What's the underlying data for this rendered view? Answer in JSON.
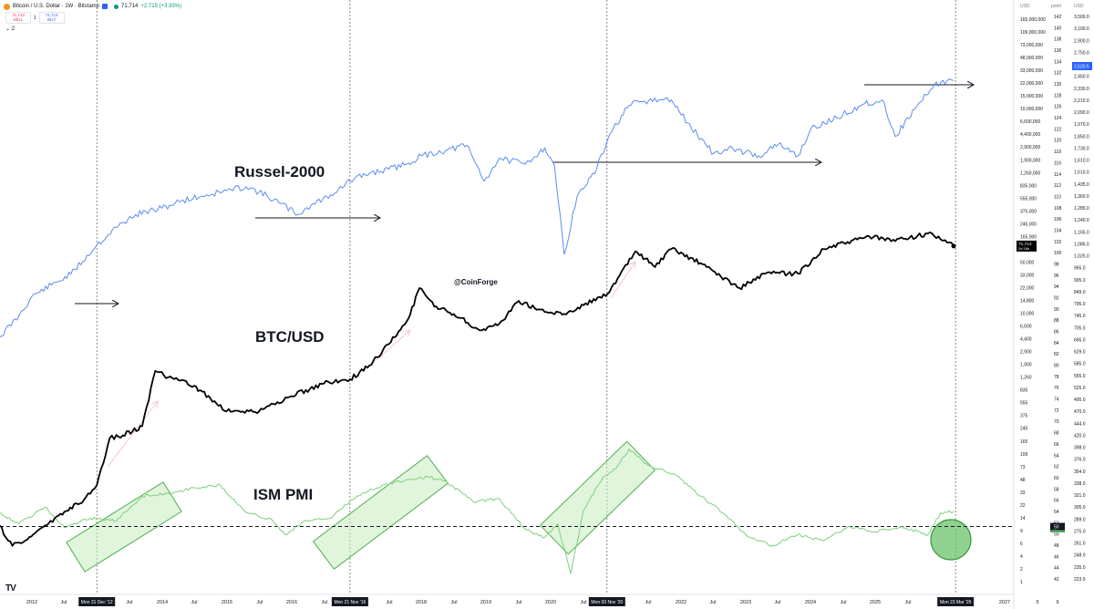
{
  "header": {
    "title": "Bitcoin / U.S. Dollar · 1W · Bitstamp",
    "last": "71,714",
    "change": "+2,715 (+3.93%)"
  },
  "trade": {
    "sell_price": "71,713",
    "sell_label": "SELL",
    "spread": "1",
    "buy_price": "71,714",
    "buy_label": "BUY"
  },
  "indicators_row": "⌄ 2",
  "logo_text": "TV",
  "colors": {
    "russell": "#5b8def",
    "btc": "#000000",
    "pmi": "#7cd17c",
    "box_fill": "#c8ecc0",
    "box_stroke": "#4caf50",
    "arrow": "#f7c6cf",
    "usd_badge": "#2962ff"
  },
  "chart_data": {
    "type": "line",
    "annotations": {
      "russell_label": "Russel-2000",
      "btc_label": "BTC/USD",
      "pmi_label": "ISM PMI",
      "watermark": "@CoinForge"
    },
    "x_axis": {
      "ticks": [
        "2012",
        "Jul",
        "Jul",
        "2014",
        "Jul",
        "2015",
        "Jul",
        "2016",
        "Jul",
        "Jul",
        "2018",
        "Jul",
        "2019",
        "Jul",
        "2020",
        "Jul",
        "Jul",
        "2022",
        "Jul",
        "2023",
        "Jul",
        "2024",
        "Jul",
        "2025",
        "Jul",
        "2027",
        "5",
        "9"
      ],
      "date_badges": [
        "Mon 31 Dec '12",
        "Mon 21 Nov '16",
        "Mon 09 Nov '20",
        "Mon 23 Mar '26"
      ]
    },
    "left_axis": {
      "unit": "USD",
      "labels": [
        "165,000,000",
        "109,000,000",
        "73,000,000",
        "48,000,000",
        "33,000,000",
        "22,000,000",
        "15,000,000",
        "10,000,000",
        "6,600,000",
        "4,400,000",
        "2,900,000",
        "1,900,000",
        "1,260,000",
        "835,000",
        "555,000",
        "375,000",
        "245,000",
        "165,000",
        "109,000",
        "50,000",
        "33,000",
        "22,000",
        "14,800",
        "10,000",
        "6,600",
        "4,400",
        "2,900",
        "1,900",
        "1,260",
        "835",
        "555",
        "375",
        "245",
        "165",
        "109",
        "73",
        "48",
        "33",
        "22",
        "14",
        "9",
        "6",
        "4",
        "2",
        "1"
      ],
      "last_value": "71,714",
      "last_sub": "2d 16h"
    },
    "pmi_axis": {
      "unit": "point",
      "labels": [
        "142",
        "140",
        "138",
        "136",
        "134",
        "132",
        "130",
        "128",
        "126",
        "124",
        "122",
        "120",
        "118",
        "116",
        "114",
        "112",
        "110",
        "108",
        "106",
        "104",
        "102",
        "100",
        "98",
        "96",
        "94",
        "92",
        "90",
        "88",
        "86",
        "84",
        "82",
        "80",
        "78",
        "76",
        "74",
        "72",
        "70",
        "68",
        "66",
        "64",
        "62",
        "60",
        "58",
        "56",
        "54",
        "52",
        "50",
        "48",
        "46",
        "44",
        "42"
      ],
      "last_value": "52.7",
      "ref_value": "50"
    },
    "russell_axis": {
      "unit": "USD",
      "labels": [
        "3,500.0",
        "3,100.0",
        "2,900.0",
        "2,750.0",
        "2,590.0",
        "2,450.0",
        "2,330.0",
        "2,210.0",
        "2,090.0",
        "1,970.0",
        "1,850.0",
        "1,730.0",
        "1,610.0",
        "1,510.0",
        "1,435.0",
        "1,360.0",
        "1,285.0",
        "1,240.0",
        "1,165.0",
        "1,086.0",
        "1,025.0",
        "965.0",
        "905.0",
        "849.0",
        "795.0",
        "745.0",
        "705.0",
        "665.0",
        "629.0",
        "585.0",
        "555.0",
        "525.0",
        "495.0",
        "470.0",
        "444.0",
        "420.0",
        "398.0",
        "376.0",
        "354.0",
        "338.0",
        "321.0",
        "305.0",
        "289.0",
        "275.0",
        "261.0",
        "248.0",
        "235.0",
        "223.5"
      ],
      "last_value": "2,520.5"
    },
    "series": [
      {
        "name": "Russel-2000",
        "x": [
          2011.5,
          2011.8,
          2012.0,
          2012.3,
          2012.6,
          2013.0,
          2013.3,
          2013.6,
          2014.0,
          2014.3,
          2014.6,
          2015.0,
          2015.3,
          2015.5,
          2015.8,
          2016.1,
          2016.3,
          2016.6,
          2016.9,
          2017.2,
          2017.5,
          2017.8,
          2018.0,
          2018.4,
          2018.7,
          2018.97,
          2019.2,
          2019.6,
          2019.9,
          2020.05,
          2020.2,
          2020.4,
          2020.7,
          2020.9,
          2021.2,
          2021.5,
          2021.85,
          2022.1,
          2022.5,
          2022.8,
          2023.2,
          2023.5,
          2023.8,
          2024.0,
          2024.4,
          2024.8,
          2025.1,
          2025.3,
          2025.6,
          2025.9,
          2026.1,
          2026.2
        ],
        "values": [
          740,
          820,
          900,
          950,
          1000,
          1150,
          1250,
          1330,
          1370,
          1420,
          1450,
          1490,
          1520,
          1480,
          1410,
          1330,
          1390,
          1460,
          1560,
          1620,
          1650,
          1700,
          1760,
          1810,
          1850,
          1560,
          1740,
          1690,
          1830,
          1680,
          1100,
          1450,
          1650,
          1950,
          2240,
          2290,
          2300,
          2060,
          1780,
          1820,
          1760,
          1860,
          1760,
          2000,
          2110,
          2250,
          2300,
          1930,
          2200,
          2470,
          2520,
          2520
        ]
      },
      {
        "name": "BTC/USD",
        "x": [
          2011.5,
          2011.7,
          2011.9,
          2012.2,
          2012.5,
          2012.8,
          2013.0,
          2013.2,
          2013.4,
          2013.7,
          2013.9,
          2014.1,
          2014.5,
          2015.0,
          2015.5,
          2016.0,
          2016.5,
          2016.9,
          2017.2,
          2017.5,
          2017.8,
          2017.97,
          2018.2,
          2018.5,
          2018.9,
          2019.2,
          2019.5,
          2019.9,
          2020.2,
          2020.5,
          2020.9,
          2021.3,
          2021.6,
          2021.85,
          2022.3,
          2022.9,
          2023.3,
          2023.8,
          2024.2,
          2024.9,
          2025.3,
          2025.8,
          2026.0,
          2026.2
        ],
        "values": [
          5,
          2.5,
          3,
          5,
          8,
          12,
          20,
          100,
          110,
          150,
          1000,
          800,
          600,
          250,
          250,
          420,
          650,
          750,
          1200,
          2500,
          6000,
          17000,
          9000,
          7000,
          4000,
          5000,
          11000,
          7500,
          7000,
          9500,
          15000,
          60000,
          35000,
          65000,
          40000,
          17000,
          28000,
          28000,
          65000,
          100000,
          85000,
          110000,
          90000,
          71714
        ]
      },
      {
        "name": "ISM PMI",
        "x": [
          2011.5,
          2011.8,
          2012.2,
          2012.5,
          2012.9,
          2013.3,
          2013.7,
          2014.1,
          2014.5,
          2014.9,
          2015.3,
          2015.7,
          2015.9,
          2016.2,
          2016.6,
          2017.0,
          2017.4,
          2017.8,
          2018.1,
          2018.4,
          2018.8,
          2019.2,
          2019.6,
          2019.9,
          2020.1,
          2020.3,
          2020.5,
          2020.8,
          2021.0,
          2021.2,
          2021.5,
          2021.9,
          2022.3,
          2022.7,
          2023.0,
          2023.4,
          2023.8,
          2024.2,
          2024.6,
          2025.0,
          2025.4,
          2025.8,
          2026.0,
          2026.2
        ],
        "values": [
          52.5,
          50.5,
          53.5,
          49.8,
          51.5,
          51.0,
          55.5,
          56.0,
          57.0,
          57.5,
          52.5,
          51.2,
          48.5,
          51.0,
          51.5,
          55.5,
          57.5,
          58.5,
          59.0,
          58.0,
          54.5,
          55.0,
          49.5,
          48.0,
          50.5,
          41.5,
          53.0,
          59.0,
          60.5,
          64.0,
          61.0,
          59.5,
          55.5,
          52.0,
          48.5,
          46.5,
          48.5,
          47.5,
          50.0,
          49.0,
          50.0,
          48.5,
          52.5,
          52.7
        ]
      }
    ],
    "pmi_reference_line": 50,
    "highlight_boxes_years": [
      [
        2012.8,
        2014.1
      ],
      [
        2016.9,
        2018.3
      ],
      [
        2020.0,
        2021.2
      ]
    ]
  }
}
